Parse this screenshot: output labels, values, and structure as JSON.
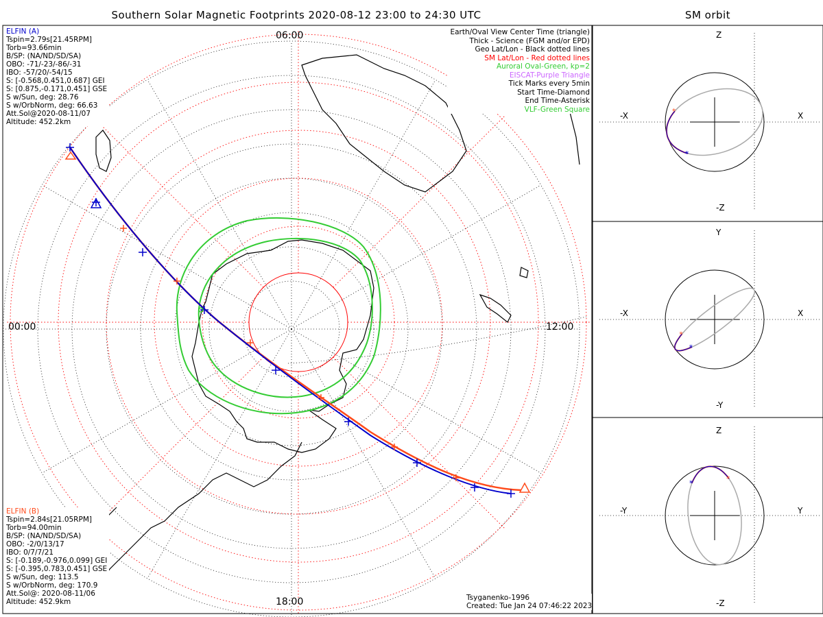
{
  "title": "Southern Solar Magnetic Footprints 2020-08-12 23:00 to 24:30 UTC",
  "orbit_title": "SM orbit",
  "mlt_labels": {
    "top": "06:00",
    "left": "00:00",
    "right": "12:00",
    "bottom": "18:00"
  },
  "elfin_a": {
    "name": "ELFIN (A)",
    "color": "#0000cc",
    "lines": [
      "Tspin=2.79s[21.45RPM]",
      "Torb=93.66min",
      "B/SP: (NA/ND/SD/SA)",
      "OBO: -71/-23/-86/-31",
      "IBO: -57/20/-54/15",
      "S: [-0.568,0.451,0.687] GEI",
      "S: [0.875,-0.171,0.451] GSE",
      "S w/Sun, deg: 28.76",
      "S w/OrbNorm, deg: 66.63",
      "Att.Sol@2020-08-11/07",
      "Altitude: 452.2km"
    ]
  },
  "elfin_b": {
    "name": "ELFIN (B)",
    "color": "#ff4a1a",
    "lines": [
      "Tspin=2.84s[21.05RPM]",
      "Torb=94.00min",
      "B/SP: (NA/ND/SD/SA)",
      "OBO: -2/0/13/17",
      "IBO: 0/7/7/21",
      "S: [-0.189,-0.976,0.099] GEI",
      "S: [-0.395,0.783,0.451] GSE",
      "S w/Sun, deg: 113.5",
      "S w/OrbNorm, deg: 170.9",
      "Att.Sol@: 2020-08-11/06",
      "Altitude: 452.9km"
    ]
  },
  "legend": [
    {
      "text": "Earth/Oval View Center Time (triangle)",
      "color": "#000000"
    },
    {
      "text": "Thick - Science (FGM and/or EPD)",
      "color": "#000000"
    },
    {
      "text": "Geo Lat/Lon - Black dotted lines",
      "color": "#000000"
    },
    {
      "text": "SM Lat/Lon - Red dotted lines",
      "color": "#ff0000"
    },
    {
      "text": "Auroral Oval-Green, kp=2",
      "color": "#33cc33"
    },
    {
      "text": "EISCAT-Purple Triangle",
      "color": "#cc66ff"
    },
    {
      "text": "Tick Marks every 5min",
      "color": "#000000"
    },
    {
      "text": "Start Time-Diamond",
      "color": "#000000"
    },
    {
      "text": "End Time-Asterisk",
      "color": "#000000"
    },
    {
      "text": "VLF-Green Square",
      "color": "#33cc33"
    }
  ],
  "credits": {
    "model": "Tsyganenko-1996",
    "created": "Created: Tue Jan 24 07:46:22 2023"
  },
  "orbit_panels": [
    {
      "top": "Z",
      "bottom": "-Z",
      "left": "-X",
      "right": "X"
    },
    {
      "top": "Y",
      "bottom": "-Y",
      "left": "-X",
      "right": "X"
    },
    {
      "top": "Z",
      "bottom": "-Z",
      "left": "-Y",
      "right": "Y"
    }
  ]
}
